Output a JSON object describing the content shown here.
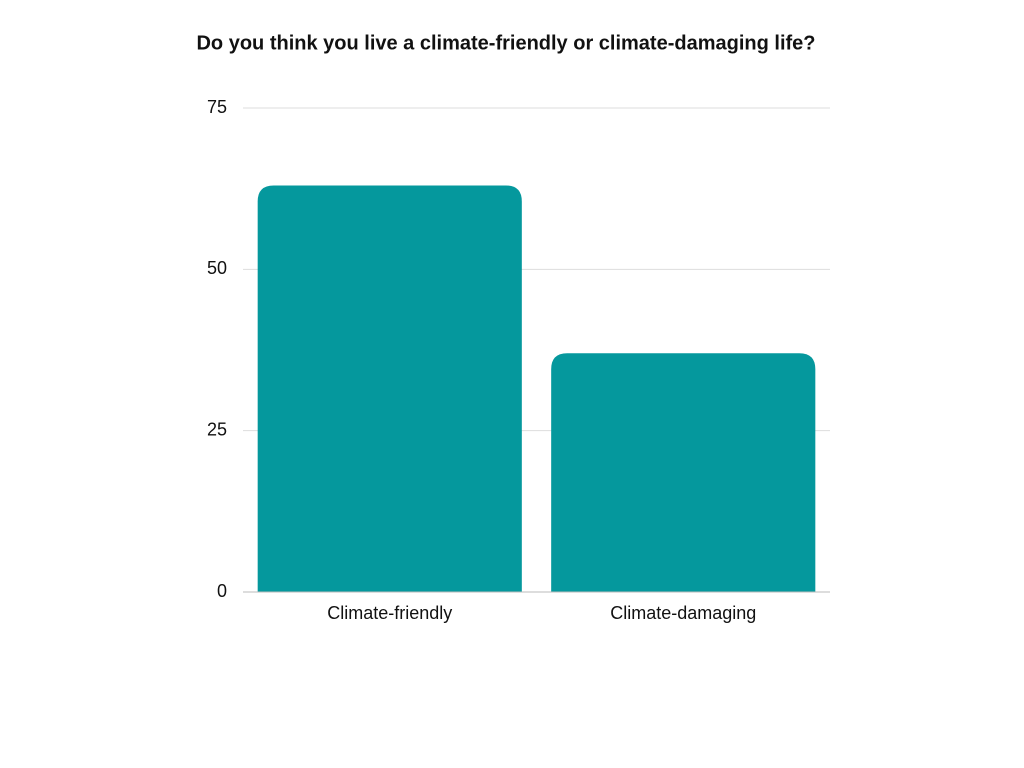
{
  "chart_data": {
    "type": "bar",
    "title": "Do you think you live a climate-friendly or climate-damaging life?",
    "categories": [
      "Climate-friendly",
      "Climate-damaging"
    ],
    "values": [
      63,
      37
    ],
    "color": "#05989d",
    "ylim": [
      0,
      75
    ],
    "yticks": [
      0,
      25,
      50,
      75
    ],
    "grid": true
  }
}
